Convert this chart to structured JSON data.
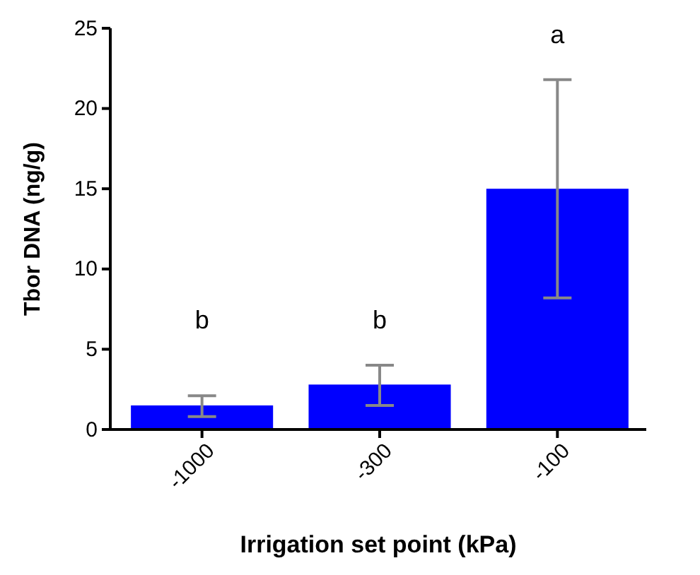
{
  "chart_data": {
    "type": "bar",
    "xlabel": "Irrigation set point (kPa)",
    "ylabel": "Tbor DNA (ng/g)",
    "categories": [
      "-1000",
      "-300",
      "-100"
    ],
    "values": [
      1.5,
      2.8,
      15.0
    ],
    "errors": [
      [
        0.8,
        2.1
      ],
      [
        1.5,
        4.0
      ],
      [
        8.2,
        21.8
      ]
    ],
    "color": "#0000ff",
    "ylim": [
      0,
      25
    ],
    "yticks": [
      0,
      5,
      10,
      15,
      20,
      25
    ],
    "grid": false,
    "annotations": [
      "b",
      "b",
      "a"
    ]
  }
}
